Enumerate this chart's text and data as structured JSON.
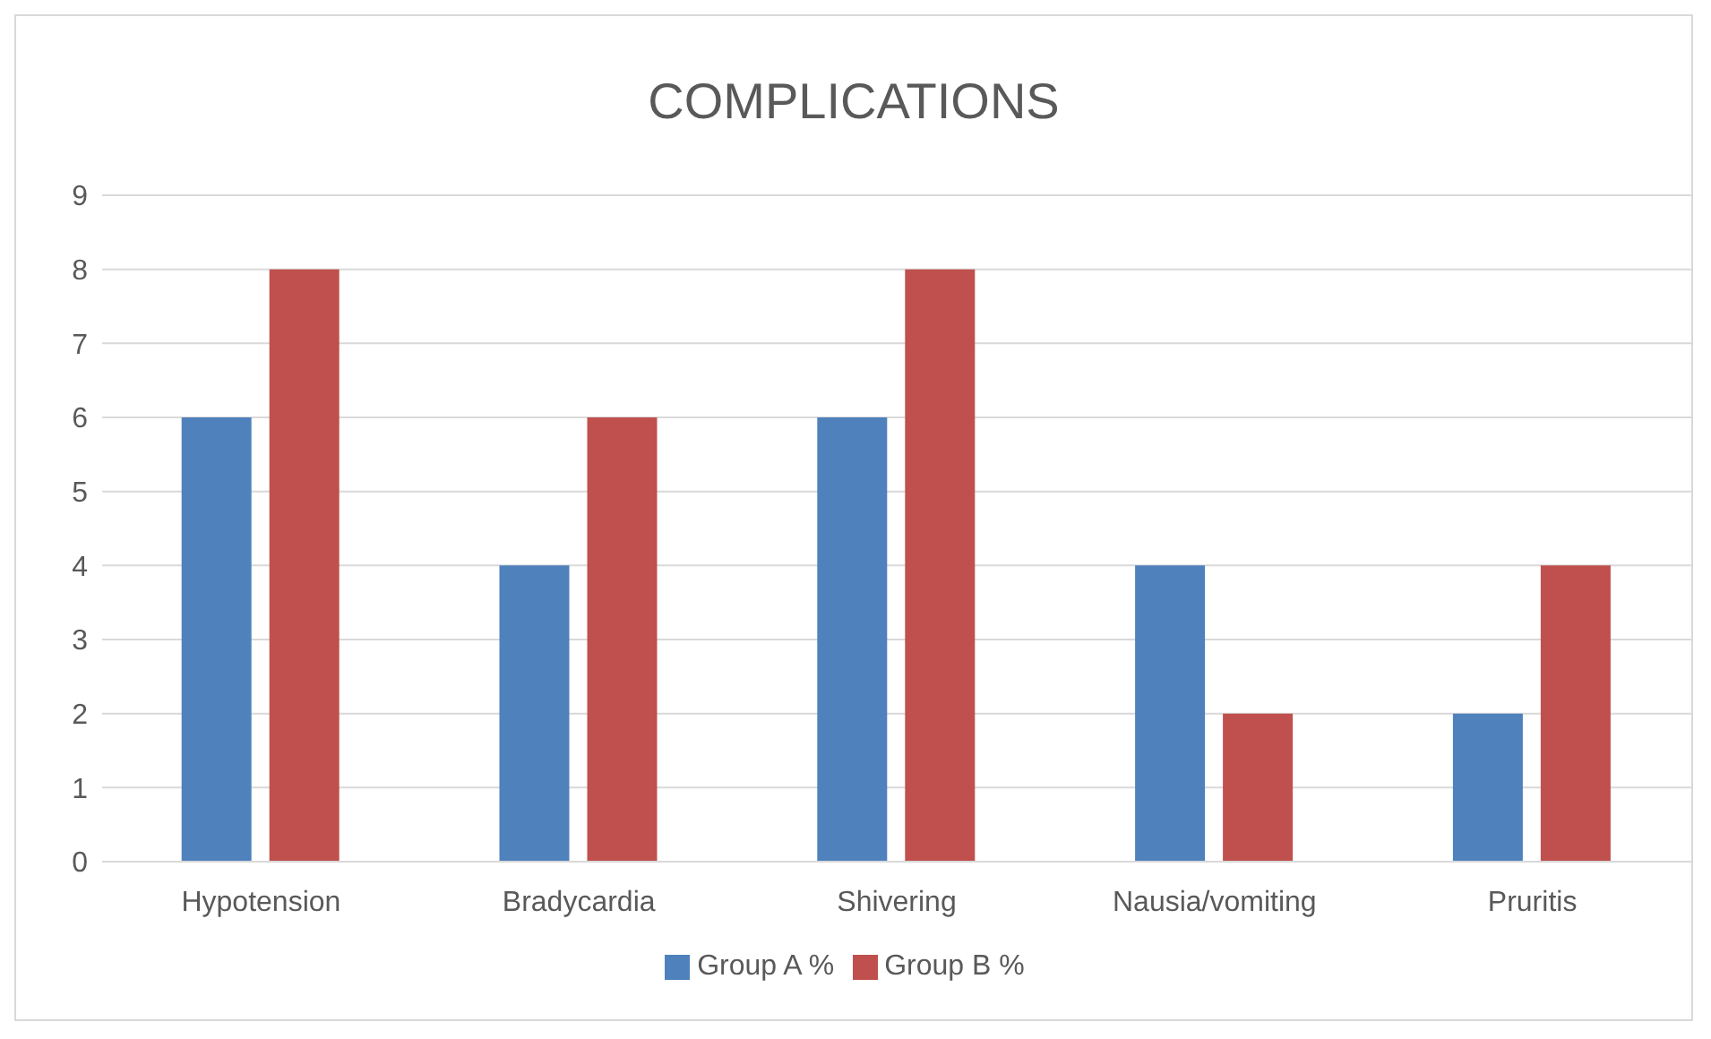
{
  "chart_data": {
    "type": "bar",
    "title": "COMPLICATIONS",
    "categories": [
      "Hypotension",
      "Bradycardia",
      "Shivering",
      "Nausia/vomiting",
      "Pruritis"
    ],
    "series": [
      {
        "name": "Group A %",
        "color": "#4f81bd",
        "values": [
          6,
          4,
          6,
          4,
          2
        ]
      },
      {
        "name": "Group B %",
        "color": "#c0504d",
        "values": [
          8,
          6,
          8,
          2,
          4
        ]
      }
    ],
    "ylim": [
      0,
      9
    ],
    "yticks": [
      0,
      1,
      2,
      3,
      4,
      5,
      6,
      7,
      8,
      9
    ],
    "grid": "y",
    "legend": "bottom"
  }
}
